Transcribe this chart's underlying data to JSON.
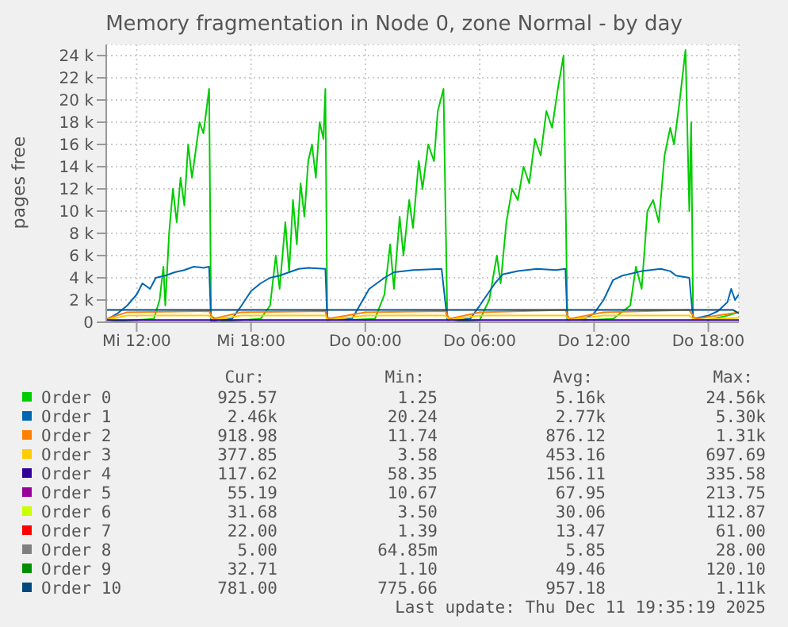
{
  "chart_data": {
    "type": "line",
    "title": "Memory fragmentation in Node 0, zone Normal - by day",
    "ylabel": "pages free",
    "xlim": [
      "2025-12-10T10:24",
      "2025-12-11T19:36"
    ],
    "xticks": [
      {
        "value": "2025-12-10T12:00",
        "label": "Mi 12:00"
      },
      {
        "value": "2025-12-10T18:00",
        "label": "Mi 18:00"
      },
      {
        "value": "2025-12-11T00:00",
        "label": "Do 00:00"
      },
      {
        "value": "2025-12-11T06:00",
        "label": "Do 06:00"
      },
      {
        "value": "2025-12-11T12:00",
        "label": "Do 12:00"
      },
      {
        "value": "2025-12-11T18:00",
        "label": "Do 18:00"
      }
    ],
    "ylim": [
      0,
      25000
    ],
    "yticks": [
      0,
      {
        "value": 2000,
        "label": "2 k"
      },
      {
        "value": 4000,
        "label": "4 k"
      },
      {
        "value": 6000,
        "label": "6 k"
      },
      {
        "value": 8000,
        "label": "8 k"
      },
      {
        "value": 10000,
        "label": "10 k"
      },
      {
        "value": 12000,
        "label": "12 k"
      },
      {
        "value": 14000,
        "label": "14 k"
      },
      {
        "value": 16000,
        "label": "16 k"
      },
      {
        "value": 18000,
        "label": "18 k"
      },
      {
        "value": 20000,
        "label": "20 k"
      },
      {
        "value": 22000,
        "label": "22 k"
      },
      {
        "value": 24000,
        "label": "24 k"
      }
    ],
    "grid": true,
    "legend": "bottom",
    "marker": "none",
    "line_style": "solid",
    "series": [
      {
        "name": "Order 0",
        "color": "#00cc00",
        "x": [
          "2025-12-10T10:24",
          "2025-12-10T11:00",
          "2025-12-10T12:00",
          "2025-12-10T12:54",
          "2025-12-10T13:12",
          "2025-12-10T13:24",
          "2025-12-10T13:30",
          "2025-12-10T13:42",
          "2025-12-10T13:54",
          "2025-12-10T14:06",
          "2025-12-10T14:18",
          "2025-12-10T14:30",
          "2025-12-10T14:42",
          "2025-12-10T14:54",
          "2025-12-10T15:06",
          "2025-12-10T15:18",
          "2025-12-10T15:30",
          "2025-12-10T15:48",
          "2025-12-10T15:54",
          "2025-12-10T16:30",
          "2025-12-10T17:30",
          "2025-12-10T18:30",
          "2025-12-10T19:00",
          "2025-12-10T19:18",
          "2025-12-10T19:30",
          "2025-12-10T19:48",
          "2025-12-10T20:00",
          "2025-12-10T20:12",
          "2025-12-10T20:24",
          "2025-12-10T20:36",
          "2025-12-10T20:48",
          "2025-12-10T21:00",
          "2025-12-10T21:12",
          "2025-12-10T21:24",
          "2025-12-10T21:36",
          "2025-12-10T21:48",
          "2025-12-10T21:54",
          "2025-12-10T22:00",
          "2025-12-10T23:00",
          "2025-12-11T00:30",
          "2025-12-11T01:00",
          "2025-12-11T01:18",
          "2025-12-11T01:30",
          "2025-12-11T01:48",
          "2025-12-11T02:00",
          "2025-12-11T02:18",
          "2025-12-11T02:30",
          "2025-12-11T02:48",
          "2025-12-11T03:00",
          "2025-12-11T03:18",
          "2025-12-11T03:36",
          "2025-12-11T03:48",
          "2025-12-11T04:06",
          "2025-12-11T04:18",
          "2025-12-11T05:00",
          "2025-12-11T06:00",
          "2025-12-11T06:30",
          "2025-12-11T06:54",
          "2025-12-11T07:06",
          "2025-12-11T07:24",
          "2025-12-11T07:42",
          "2025-12-11T08:00",
          "2025-12-11T08:18",
          "2025-12-11T08:36",
          "2025-12-11T08:54",
          "2025-12-11T09:12",
          "2025-12-11T09:30",
          "2025-12-11T09:48",
          "2025-12-11T10:06",
          "2025-12-11T10:24",
          "2025-12-11T10:36",
          "2025-12-11T11:30",
          "2025-12-11T13:00",
          "2025-12-11T13:54",
          "2025-12-11T14:12",
          "2025-12-11T14:30",
          "2025-12-11T14:48",
          "2025-12-11T15:06",
          "2025-12-11T15:24",
          "2025-12-11T15:42",
          "2025-12-11T16:00",
          "2025-12-11T16:12",
          "2025-12-11T16:30",
          "2025-12-11T16:48",
          "2025-12-11T17:00",
          "2025-12-11T17:06",
          "2025-12-11T17:12",
          "2025-12-11T18:00",
          "2025-12-11T19:00",
          "2025-12-11T19:36"
        ],
        "values": [
          0,
          100,
          200,
          300,
          2000,
          5000,
          1500,
          8000,
          12000,
          9000,
          13000,
          10500,
          16000,
          13000,
          15500,
          18000,
          17000,
          21000,
          500,
          100,
          200,
          300,
          1500,
          6000,
          3000,
          9000,
          4500,
          11000,
          7000,
          12500,
          9500,
          14500,
          16000,
          13000,
          18000,
          16500,
          21000,
          400,
          200,
          300,
          2500,
          7000,
          3000,
          9500,
          6000,
          11000,
          8500,
          14500,
          12000,
          16000,
          14500,
          19000,
          21000,
          300,
          100,
          200,
          2000,
          6000,
          3500,
          9000,
          12000,
          11000,
          14000,
          12500,
          16500,
          15000,
          19000,
          17500,
          21000,
          24000,
          300,
          200,
          300,
          1500,
          5000,
          3000,
          10000,
          11000,
          9000,
          15000,
          17500,
          16000,
          20000,
          24500,
          10000,
          18000,
          300,
          200,
          600,
          900
        ]
      },
      {
        "name": "Order 1",
        "color": "#0066b3",
        "x": [
          "2025-12-10T10:24",
          "2025-12-10T11:00",
          "2025-12-10T11:30",
          "2025-12-10T12:00",
          "2025-12-10T12:18",
          "2025-12-10T12:42",
          "2025-12-10T13:00",
          "2025-12-10T13:30",
          "2025-12-10T14:00",
          "2025-12-10T14:30",
          "2025-12-10T15:00",
          "2025-12-10T15:30",
          "2025-12-10T15:48",
          "2025-12-10T15:54",
          "2025-12-10T17:00",
          "2025-12-10T17:30",
          "2025-12-10T18:00",
          "2025-12-10T18:30",
          "2025-12-10T19:00",
          "2025-12-10T19:30",
          "2025-12-10T20:00",
          "2025-12-10T20:30",
          "2025-12-10T21:00",
          "2025-12-10T21:54",
          "2025-12-10T22:00",
          "2025-12-10T23:18",
          "2025-12-10T23:42",
          "2025-12-11T00:12",
          "2025-12-11T00:36",
          "2025-12-11T01:00",
          "2025-12-11T01:30",
          "2025-12-11T02:30",
          "2025-12-11T04:00",
          "2025-12-11T04:18",
          "2025-12-11T05:30",
          "2025-12-11T06:00",
          "2025-12-11T06:24",
          "2025-12-11T06:48",
          "2025-12-11T07:12",
          "2025-12-11T08:00",
          "2025-12-11T09:00",
          "2025-12-11T10:00",
          "2025-12-11T10:30",
          "2025-12-11T10:36",
          "2025-12-11T11:30",
          "2025-12-11T12:00",
          "2025-12-11T12:30",
          "2025-12-11T13:00",
          "2025-12-11T13:30",
          "2025-12-11T14:30",
          "2025-12-11T15:30",
          "2025-12-11T16:00",
          "2025-12-11T16:18",
          "2025-12-11T17:00",
          "2025-12-11T17:12",
          "2025-12-11T18:00",
          "2025-12-11T18:30",
          "2025-12-11T19:00",
          "2025-12-11T19:12",
          "2025-12-11T19:24",
          "2025-12-11T19:36"
        ],
        "values": [
          200,
          800,
          1500,
          2500,
          3500,
          3000,
          4000,
          4200,
          4500,
          4700,
          5000,
          4900,
          5000,
          100,
          300,
          1500,
          2800,
          3500,
          4000,
          4200,
          4500,
          4800,
          4900,
          4800,
          200,
          300,
          1500,
          3000,
          3500,
          4000,
          4500,
          4700,
          4800,
          200,
          300,
          1500,
          2500,
          3500,
          4300,
          4600,
          4800,
          4700,
          4800,
          200,
          300,
          800,
          2000,
          3800,
          4200,
          4600,
          4800,
          4600,
          4200,
          4000,
          300,
          600,
          1000,
          1800,
          3000,
          2000,
          2500
        ]
      },
      {
        "name": "Order 2",
        "color": "#ff8000",
        "x": [
          "2025-12-10T10:24",
          "2025-12-10T11:30",
          "2025-12-10T15:48",
          "2025-12-10T16:00",
          "2025-12-10T17:30",
          "2025-12-10T21:54",
          "2025-12-10T22:00",
          "2025-12-11T00:00",
          "2025-12-11T04:12",
          "2025-12-11T04:24",
          "2025-12-11T06:00",
          "2025-12-11T10:30",
          "2025-12-11T10:42",
          "2025-12-11T12:30",
          "2025-12-11T17:00",
          "2025-12-11T17:18",
          "2025-12-11T19:36"
        ],
        "values": [
          300,
          900,
          1000,
          300,
          900,
          1000,
          300,
          900,
          1000,
          300,
          900,
          1100,
          300,
          900,
          1100,
          300,
          900
        ]
      },
      {
        "name": "Order 3",
        "color": "#ffcc00",
        "x": [
          "2025-12-10T10:24",
          "2025-12-10T11:30",
          "2025-12-10T15:48",
          "2025-12-10T16:00",
          "2025-12-10T17:30",
          "2025-12-10T21:54",
          "2025-12-10T22:00",
          "2025-12-11T00:00",
          "2025-12-11T04:12",
          "2025-12-11T04:24",
          "2025-12-11T06:00",
          "2025-12-11T10:30",
          "2025-12-11T10:42",
          "2025-12-11T12:30",
          "2025-12-11T17:00",
          "2025-12-11T17:18",
          "2025-12-11T19:36"
        ],
        "values": [
          200,
          600,
          600,
          200,
          600,
          600,
          200,
          600,
          600,
          200,
          600,
          600,
          200,
          600,
          600,
          200,
          400
        ]
      },
      {
        "name": "Order 4",
        "color": "#330099",
        "x": [
          "2025-12-10T10:24",
          "2025-12-10T20:00",
          "2025-12-11T06:00",
          "2025-12-11T19:36"
        ],
        "values": [
          200,
          200,
          200,
          200
        ]
      },
      {
        "name": "Order 5",
        "color": "#990099"
      },
      {
        "name": "Order 6",
        "color": "#ccff00"
      },
      {
        "name": "Order 7",
        "color": "#ff0000"
      },
      {
        "name": "Order 8",
        "color": "#808080"
      },
      {
        "name": "Order 9",
        "color": "#008f00"
      },
      {
        "name": "Order 10",
        "color": "#00487d",
        "x": [
          "2025-12-10T10:24",
          "2025-12-10T20:00",
          "2025-12-11T06:00",
          "2025-12-11T19:18",
          "2025-12-11T19:36"
        ],
        "values": [
          1100,
          1100,
          1100,
          1100,
          800
        ]
      }
    ],
    "annotations": [
      "Cur:",
      "Min:",
      "Avg:",
      "Max:",
      "925.57",
      "1.25",
      "5.16k",
      "24.56k",
      "2.46k",
      "20.24",
      "2.77k",
      "5.30k",
      "918.98",
      "11.74",
      "876.12",
      "1.31k",
      "377.85",
      "3.58",
      "453.16",
      "697.69",
      "117.62",
      "58.35",
      "156.11",
      "335.58",
      "55.19",
      "10.67",
      "67.95",
      "213.75",
      "31.68",
      "3.50",
      "30.06",
      "112.87",
      "22.00",
      "1.39",
      "13.47",
      "61.00",
      "5.00",
      "64.85m",
      "5.85",
      "28.00",
      "32.71",
      "1.10",
      "49.46",
      "120.10",
      "781.00",
      "775.66",
      "957.18",
      "1.11k",
      "Last update: Thu Dec 11 19:35:19 2025"
    ]
  }
}
